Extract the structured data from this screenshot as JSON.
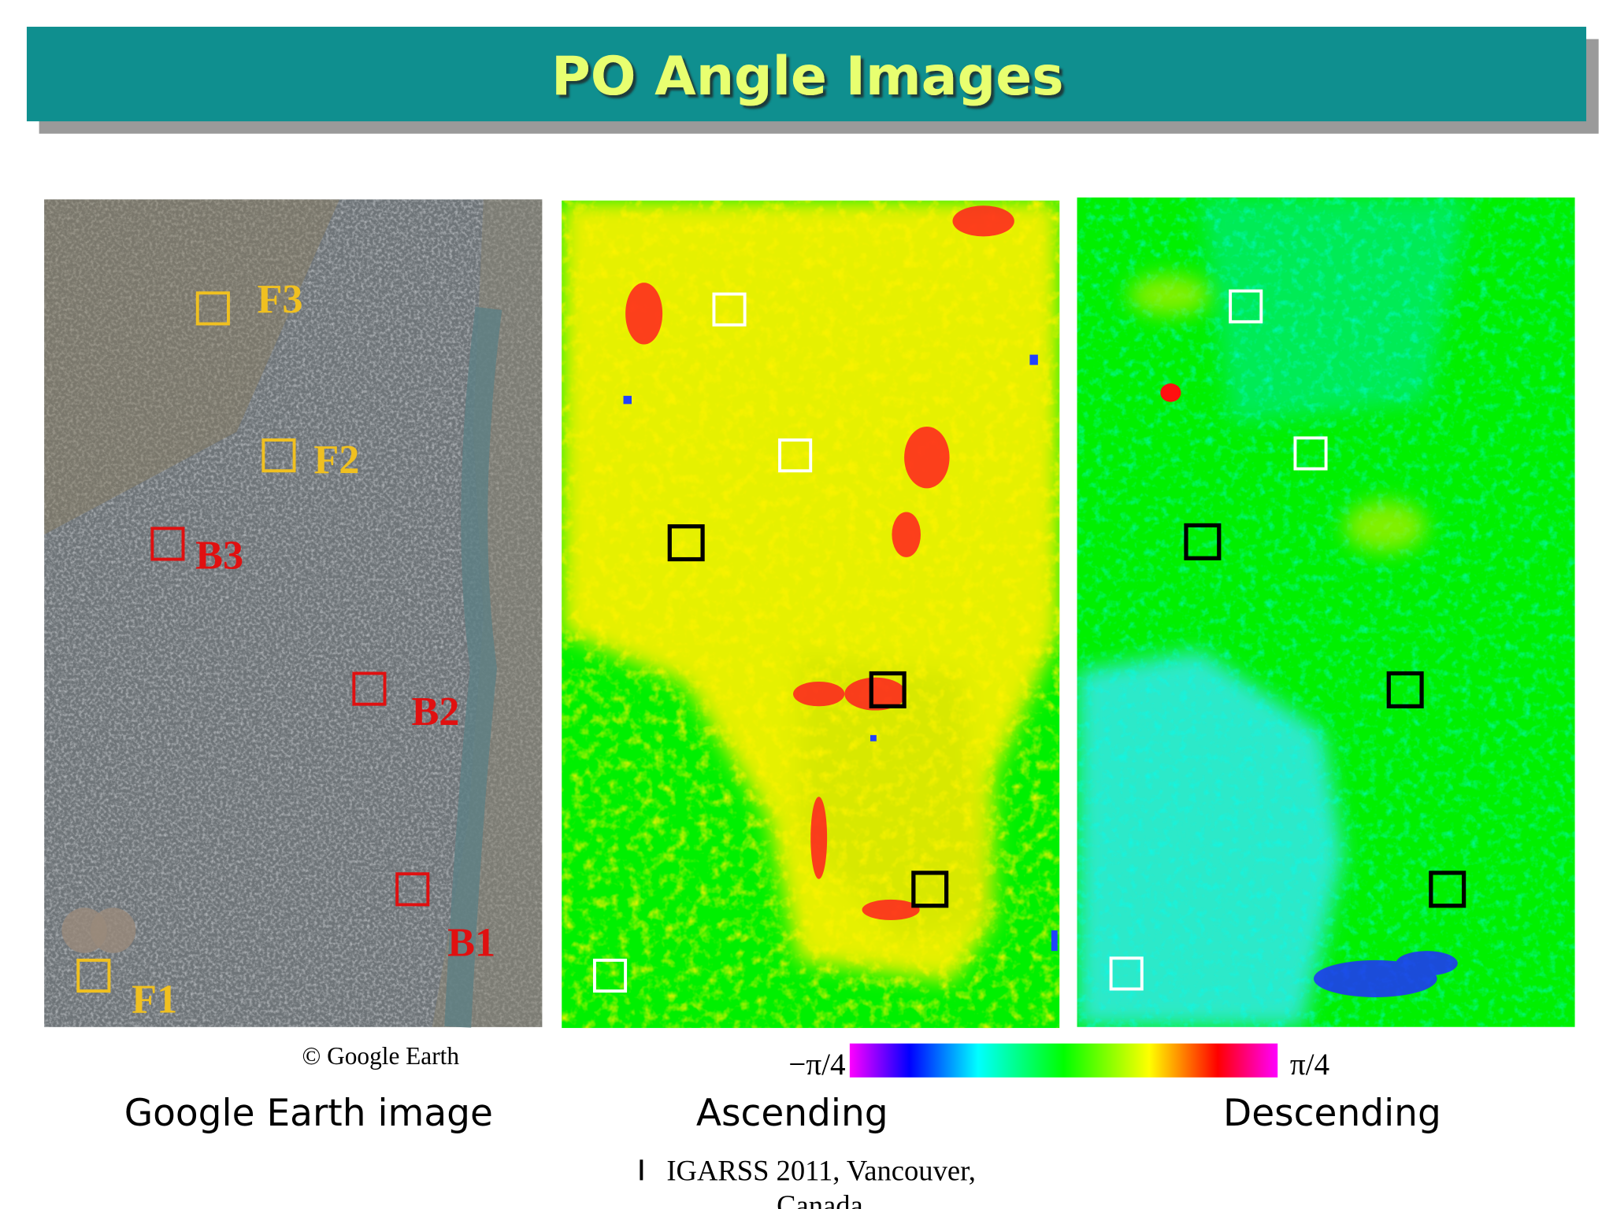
{
  "header": {
    "title": "PO Angle Images"
  },
  "panels": [
    {
      "caption": "Google Earth image",
      "credit": "© Google Earth",
      "boxes": [
        {
          "label": "F3"
        },
        {
          "label": "F2"
        },
        {
          "label": "B3"
        },
        {
          "label": "B2"
        },
        {
          "label": "B1"
        },
        {
          "label": "F1"
        }
      ]
    },
    {
      "caption": "Ascending"
    },
    {
      "caption": "Descending"
    }
  ],
  "colorbar": {
    "min_label": "−π/4",
    "max_label": "π/4"
  },
  "footer": {
    "lines": [
      "IGARSS 2011, Vancouver,",
      "Canada"
    ]
  }
}
